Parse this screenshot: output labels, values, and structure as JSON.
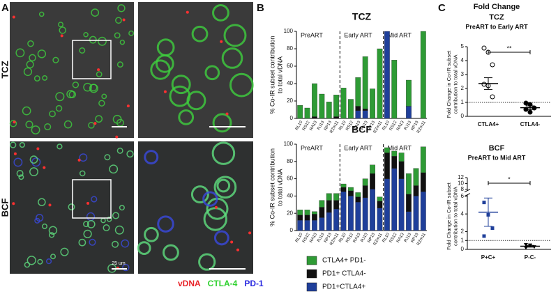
{
  "figure": {
    "panels": [
      "A",
      "B",
      "C"
    ],
    "rows": [
      "TCZ",
      "BCF"
    ],
    "scale_bar": "25 um",
    "channels": [
      {
        "name": "vDNA",
        "color": "#e8242a"
      },
      {
        "name": "CTLA-4",
        "color": "#2fd12f"
      },
      {
        "name": "PD-1",
        "color": "#2a2ae0"
      }
    ],
    "fold_change_title": "Fold Change"
  },
  "chart_data": [
    {
      "type": "stacked_bar",
      "title": "TCZ",
      "ylabel": [
        "% Co-IR subset contribution",
        "to total vDNA"
      ],
      "groups": [
        "PreART",
        "Early ART",
        "Mid ART"
      ],
      "categories": [
        "RL10",
        "RS12",
        "RA13",
        "RJ13",
        "RP13",
        "RZm11",
        "RL10",
        "RS12",
        "RA13",
        "RJ13",
        "RP13",
        "RZm11",
        "RL10",
        "RS12",
        "RA13",
        "RJ13",
        "RP13",
        "RZm11"
      ],
      "series": [
        {
          "color": "#2e9b35",
          "values": [
            15,
            12,
            38,
            28,
            19,
            25,
            35,
            22,
            33,
            60,
            34,
            80,
            0,
            67,
            0,
            30,
            0,
            100
          ]
        },
        {
          "color": "#111111",
          "values": [
            0,
            0,
            2,
            0,
            0,
            2,
            0,
            0,
            5,
            2,
            0,
            0,
            0,
            0,
            0,
            0,
            0,
            0
          ]
        },
        {
          "color": "#1f3f9a",
          "values": [
            0,
            0,
            0,
            0,
            0,
            0,
            0,
            0,
            9,
            9,
            0,
            0,
            100,
            0,
            0,
            14,
            0,
            0
          ]
        }
      ],
      "ylim": [
        0,
        100
      ],
      "yticks": [
        0,
        20,
        40,
        60,
        80,
        100
      ]
    },
    {
      "type": "stacked_bar",
      "title": "BCF",
      "ylabel": [
        "% Co-IR subset contribution",
        "to total vDNA"
      ],
      "groups": [
        "PreART",
        "Early ART",
        "Mid ART"
      ],
      "categories": [
        "RL10",
        "RS12",
        "RA13",
        "RJ13",
        "RP13",
        "RZm11",
        "RL10",
        "RS12",
        "RA13",
        "RJ13",
        "RP13",
        "RZm11",
        "RL10",
        "RS12",
        "RA13",
        "RJ13",
        "RP13",
        "RZm11"
      ],
      "series": [
        {
          "name": "CTLA4+ PD1-",
          "color": "#2e9b35",
          "values": [
            6,
            6,
            3,
            8,
            8,
            8,
            4,
            4,
            5,
            8,
            10,
            5,
            6,
            6,
            10,
            24,
            20,
            30
          ]
        },
        {
          "name": "PD1+ CTLA4-",
          "color": "#111111",
          "values": [
            6,
            6,
            7,
            12,
            14,
            10,
            5,
            6,
            6,
            14,
            18,
            8,
            30,
            14,
            20,
            20,
            12,
            22
          ]
        },
        {
          "name": "PD1+CTLA4+",
          "color": "#1f3f9a",
          "values": [
            12,
            12,
            12,
            15,
            21,
            25,
            45,
            40,
            33,
            38,
            48,
            26,
            60,
            72,
            60,
            22,
            40,
            45
          ]
        }
      ],
      "ylim": [
        0,
        100
      ],
      "yticks": [
        0,
        20,
        40,
        60,
        80,
        100
      ],
      "legend": "below"
    },
    {
      "type": "dot_plot",
      "title": "TCZ",
      "subtitle": "PreART to Early ART",
      "ylabel": [
        "Fold Change in Co-IR subset",
        "contribution to total vDNA"
      ],
      "categories": [
        "CTLA4+",
        "CTLA4-"
      ],
      "markers": [
        "open-circle",
        "circle"
      ],
      "colors": [
        "#000000",
        "#000000"
      ],
      "values": [
        [
          4.9,
          4.6,
          3.7,
          2.3,
          2.2,
          1.4
        ],
        [
          0.95,
          0.85,
          0.6,
          0.5,
          0.3
        ]
      ],
      "means": [
        2.35,
        0.62
      ],
      "sems": [
        0.42,
        0.13
      ],
      "annotation": "**",
      "reference_line": 1,
      "ylim": [
        0,
        5
      ],
      "yticks": [
        0,
        1,
        2,
        3,
        4,
        5
      ]
    },
    {
      "type": "dot_plot",
      "title": "BCF",
      "subtitle": "PreART to Mid ART",
      "ylabel": [
        "Fold Change in Co-IR subset",
        "contribution to total vDNA"
      ],
      "categories": [
        "P+C+",
        "P-C-"
      ],
      "markers": [
        "square",
        "triangle"
      ],
      "colors": [
        "#1f3f9a",
        "#000000"
      ],
      "values": [
        [
          5.3,
          3.9,
          2.4,
          1.5
        ],
        [
          0.55,
          0.45,
          0.3,
          0.2,
          0.5
        ]
      ],
      "means": [
        4.2,
        0.35
      ],
      "sems": [
        1.6,
        0.1
      ],
      "annotation": "*",
      "reference_line": 1,
      "ylim": [
        0,
        12
      ],
      "ybreak": [
        6,
        8
      ],
      "yticks": [
        0,
        1,
        2,
        4,
        6,
        8,
        10,
        12
      ]
    }
  ]
}
